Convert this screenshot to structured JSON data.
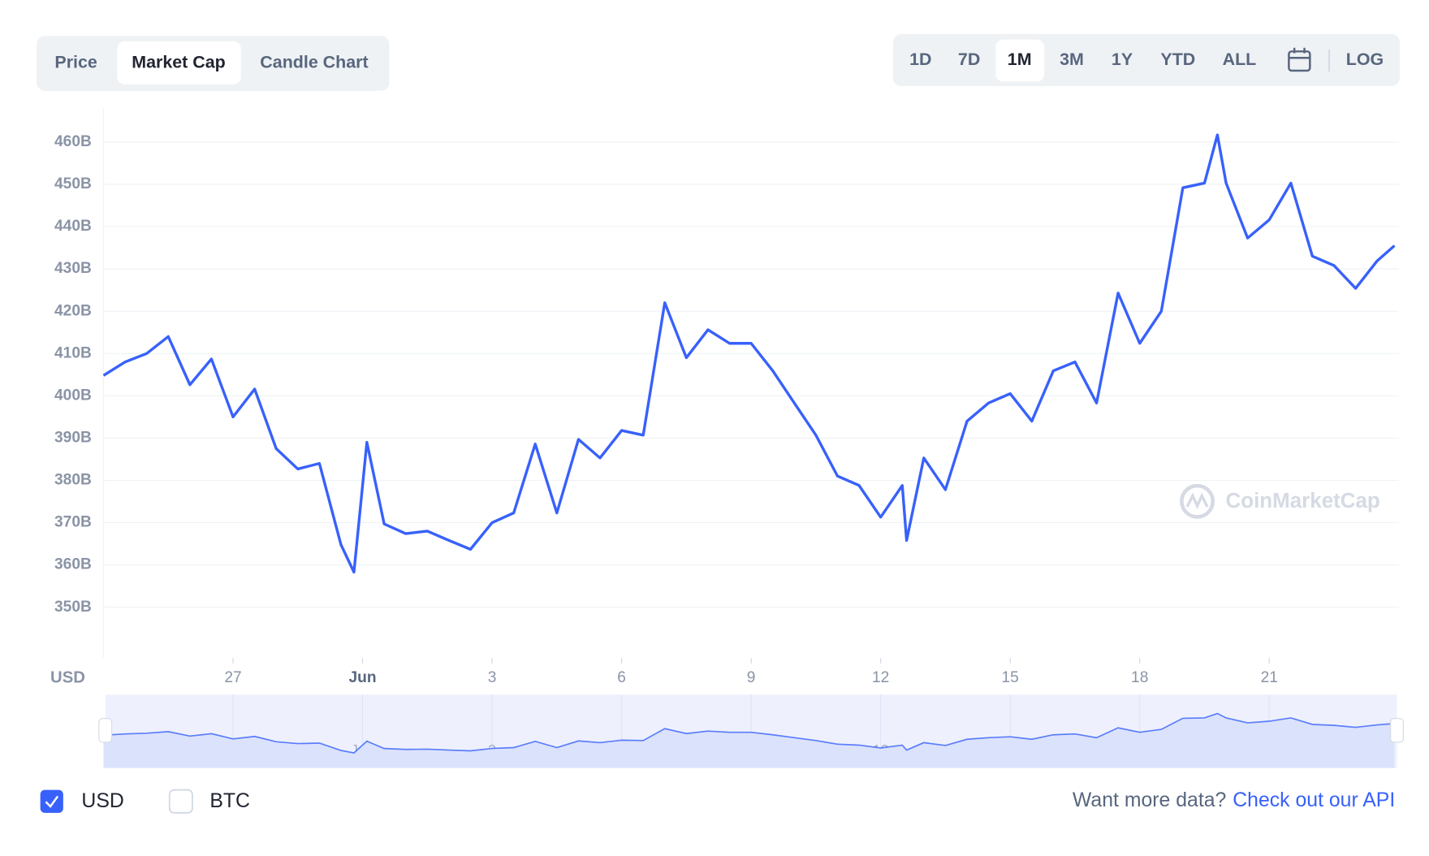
{
  "tabs": [
    "Price",
    "Market Cap",
    "Candle Chart"
  ],
  "ranges": [
    "1D",
    "7D",
    "1M",
    "3M",
    "1Y",
    "YTD",
    "ALL"
  ],
  "log": "LOG",
  "currencies": [
    "USD",
    "BTC"
  ],
  "footer": {
    "prompt": "Want more data?",
    "link": "Check out our API"
  },
  "watermark": "CoinMarketCap",
  "chart_data": {
    "type": "line",
    "axis_label": "USD",
    "color": "#3861fb",
    "grid": true,
    "x": [
      24,
      24.5,
      25,
      25.5,
      26,
      26.5,
      27,
      27.5,
      28,
      28.5,
      29,
      29.5,
      29.8,
      30.1,
      30.5,
      31,
      31.5,
      32,
      32.5,
      33,
      33.5,
      34,
      34.5,
      35,
      35.5,
      36,
      36.5,
      37,
      37.5,
      38,
      38.5,
      39,
      39.5,
      40,
      40.5,
      41,
      41.5,
      42,
      42.5,
      42.6,
      43,
      43.5,
      44,
      44.5,
      45,
      45.5,
      46,
      46.5,
      47,
      47.5,
      48,
      48.5,
      49,
      49.5,
      49.8,
      50,
      50.5,
      51,
      51.5,
      52,
      52.5,
      53,
      53.5,
      53.9
    ],
    "values": [
      404.8,
      408,
      410,
      414,
      402.6,
      408.7,
      395,
      401.6,
      387.5,
      382.7,
      384,
      364.8,
      358.3,
      389,
      369.7,
      367.4,
      368,
      365.8,
      363.7,
      370,
      372.3,
      388.6,
      372.3,
      389.7,
      385.3,
      391.8,
      390.7,
      422,
      409,
      415.6,
      412.4,
      412.4,
      405.9,
      398.3,
      390.7,
      381,
      378.8,
      371.3,
      378.8,
      365.8,
      385.3,
      377.8,
      394,
      398.3,
      400.5,
      394,
      405.9,
      408,
      398.3,
      424.3,
      412.4,
      420,
      449.2,
      450.3,
      461.7,
      450.3,
      437.3,
      441.6,
      450.3,
      433,
      430.8,
      425.4,
      431.9,
      435.5
    ],
    "xlim": [
      24,
      54
    ],
    "xticks": [
      {
        "value": 27,
        "label": "27"
      },
      {
        "value": 30,
        "label": "Jun"
      },
      {
        "value": 33,
        "label": "3"
      },
      {
        "value": 36,
        "label": "6"
      },
      {
        "value": 39,
        "label": "9"
      },
      {
        "value": 42,
        "label": "12"
      },
      {
        "value": 45,
        "label": "15"
      },
      {
        "value": 48,
        "label": "18"
      },
      {
        "value": 51,
        "label": "21"
      }
    ],
    "ylim": [
      338,
      468
    ],
    "yticks": [
      {
        "value": 350,
        "label": "350B"
      },
      {
        "value": 360,
        "label": "360B"
      },
      {
        "value": 370,
        "label": "370B"
      },
      {
        "value": 380,
        "label": "380B"
      },
      {
        "value": 390,
        "label": "390B"
      },
      {
        "value": 400,
        "label": "400B"
      },
      {
        "value": 410,
        "label": "410B"
      },
      {
        "value": 420,
        "label": "420B"
      },
      {
        "value": 430,
        "label": "430B"
      },
      {
        "value": 440,
        "label": "440B"
      },
      {
        "value": 450,
        "label": "450B"
      },
      {
        "value": 460,
        "label": "460B"
      }
    ]
  }
}
